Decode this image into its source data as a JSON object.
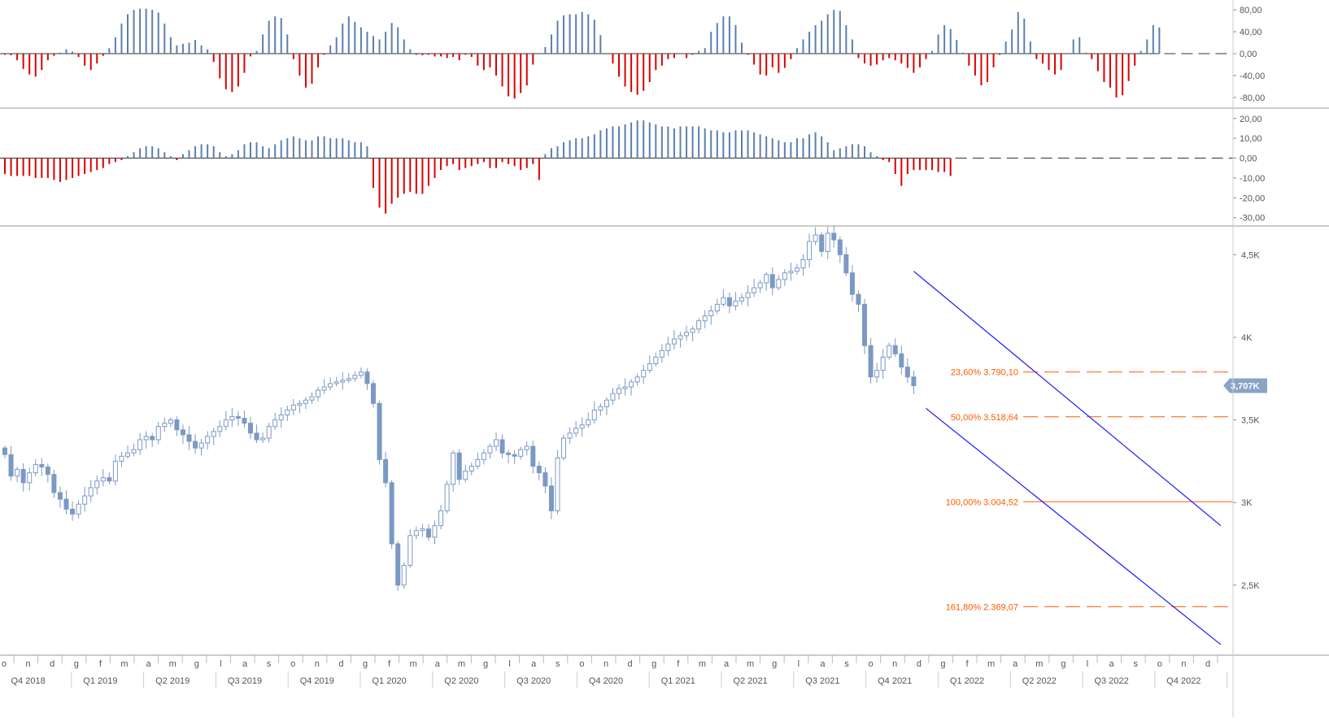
{
  "colors": {
    "up": "#5b7fb0",
    "down": "#dd0000",
    "candle": "#7b99c4",
    "channel": "#1a1aff",
    "fib": "#ff5a00",
    "axis_text": "#555555",
    "divider": "#999999",
    "price_label_bg": "#8aa3c6"
  },
  "last_price_label": "3,707K",
  "chart_data": [
    {
      "type": "bar",
      "panel": "oscillator-1",
      "ylim": [
        -95,
        95
      ],
      "ticks": [
        {
          "v": 80,
          "label": "80,00"
        },
        {
          "v": 40,
          "label": "40,00"
        },
        {
          "v": 0,
          "label": "0,00"
        },
        {
          "v": -40,
          "label": "-40,00"
        },
        {
          "v": -80,
          "label": "-80,00"
        }
      ],
      "values": [
        -2,
        -3,
        -12,
        -28,
        -38,
        -42,
        -30,
        -12,
        -4,
        2,
        8,
        4,
        -6,
        -22,
        -30,
        -18,
        -4,
        10,
        30,
        55,
        72,
        80,
        82,
        82,
        80,
        75,
        55,
        30,
        15,
        18,
        20,
        25,
        15,
        8,
        -15,
        -45,
        -65,
        -70,
        -60,
        -35,
        -5,
        5,
        35,
        60,
        68,
        65,
        35,
        -10,
        -40,
        -62,
        -55,
        -25,
        -2,
        15,
        30,
        55,
        68,
        58,
        48,
        40,
        32,
        26,
        40,
        56,
        48,
        26,
        8,
        -2,
        -3,
        -2,
        -5,
        -5,
        -8,
        -6,
        -12,
        -2,
        -6,
        -22,
        -30,
        -25,
        -40,
        -60,
        -78,
        -82,
        -72,
        -58,
        -20,
        0,
        12,
        35,
        60,
        70,
        72,
        72,
        76,
        72,
        62,
        34,
        0,
        -18,
        -42,
        -60,
        -70,
        -75,
        -68,
        -52,
        -30,
        -22,
        -10,
        -8,
        0,
        -8,
        -2,
        5,
        10,
        40,
        56,
        68,
        68,
        52,
        20,
        -2,
        -20,
        -38,
        -40,
        -25,
        -35,
        -26,
        -10,
        10,
        26,
        40,
        52,
        60,
        72,
        80,
        78,
        52,
        26,
        -8,
        -18,
        -22,
        -20,
        -12,
        -8,
        -12,
        -18,
        -26,
        -35,
        -25,
        -10,
        5,
        35,
        52,
        45,
        25,
        2,
        -22,
        -40,
        -58,
        -52,
        -25,
        -2,
        22,
        44,
        76,
        64,
        22,
        -10,
        -18,
        -30,
        -38,
        -30,
        0,
        26,
        30,
        2,
        -10,
        -32,
        -52,
        -62,
        -80,
        -76,
        -50,
        -22,
        5,
        26,
        52,
        48
      ],
      "zero_line_end": 112
    },
    {
      "type": "bar",
      "panel": "oscillator-2",
      "ylim": [
        -33,
        24
      ],
      "ticks": [
        {
          "v": 20,
          "label": "20,00"
        },
        {
          "v": 10,
          "label": "10,00"
        },
        {
          "v": 0,
          "label": "0,00"
        },
        {
          "v": -10,
          "label": "-10,00"
        },
        {
          "v": -20,
          "label": "-20,00"
        },
        {
          "v": -30,
          "label": "-30,00"
        }
      ],
      "values": [
        -8,
        -9,
        -9,
        -9,
        -9,
        -10,
        -10,
        -10,
        -11,
        -12,
        -11,
        -10,
        -9,
        -8,
        -7,
        -6,
        -5,
        -3,
        -2,
        -1,
        1,
        3,
        5,
        6,
        6,
        5,
        3,
        1,
        -1,
        2,
        4,
        6,
        7,
        7,
        6,
        3,
        1,
        2,
        4,
        7,
        8,
        8,
        6,
        5,
        7,
        9,
        10,
        11,
        10,
        9,
        9,
        11,
        11,
        10,
        10,
        10,
        9,
        8,
        8,
        6,
        -15,
        -25,
        -28,
        -23,
        -20,
        -18,
        -17,
        -18,
        -18,
        -14,
        -10,
        -6,
        -4,
        -3,
        -6,
        -5,
        -4,
        -3,
        -2,
        -5,
        -5,
        -2,
        -3,
        -4,
        -6,
        -5,
        -3,
        -11,
        2,
        5,
        6,
        8,
        9,
        10,
        10,
        11,
        12,
        14,
        15,
        16,
        16,
        17,
        18,
        19,
        19,
        18,
        17,
        16,
        16,
        15,
        16,
        16,
        16,
        16,
        15,
        14,
        14,
        13,
        13,
        14,
        14,
        14,
        13,
        12,
        11,
        10,
        9,
        8,
        8,
        10,
        10,
        12,
        13,
        11,
        8,
        4,
        5,
        6,
        7,
        7,
        6,
        3,
        1,
        -1,
        -2,
        -8,
        -14,
        -8,
        -6,
        -6,
        -6,
        -6,
        -7,
        -7,
        -9
      ],
      "zero_line_end": 112
    },
    {
      "type": "candlestick",
      "panel": "price",
      "ylim": [
        2130,
        4620
      ],
      "ticks": [
        {
          "v": 4500,
          "label": "4,5K"
        },
        {
          "v": 4000,
          "label": "4K"
        },
        {
          "v": 3500,
          "label": "3,5K"
        },
        {
          "v": 3000,
          "label": "3K"
        },
        {
          "v": 2500,
          "label": "2,5K"
        }
      ],
      "closes": [
        3290,
        3160,
        3200,
        3120,
        3180,
        3230,
        3215,
        3170,
        3060,
        3020,
        2960,
        2930,
        2990,
        3040,
        3090,
        3130,
        3150,
        3130,
        3250,
        3280,
        3300,
        3320,
        3380,
        3400,
        3380,
        3460,
        3480,
        3500,
        3440,
        3410,
        3370,
        3330,
        3360,
        3400,
        3430,
        3460,
        3500,
        3520,
        3510,
        3480,
        3420,
        3380,
        3390,
        3460,
        3500,
        3530,
        3560,
        3590,
        3600,
        3620,
        3640,
        3680,
        3700,
        3720,
        3730,
        3740,
        3750,
        3770,
        3790,
        3720,
        3600,
        3260,
        3120,
        2750,
        2500,
        2620,
        2800,
        2830,
        2840,
        2790,
        2860,
        2950,
        3110,
        3300,
        3140,
        3190,
        3220,
        3260,
        3300,
        3340,
        3380,
        3300,
        3290,
        3280,
        3320,
        3340,
        3220,
        3180,
        3100,
        2950,
        3270,
        3390,
        3420,
        3450,
        3470,
        3500,
        3560,
        3580,
        3620,
        3660,
        3690,
        3700,
        3730,
        3760,
        3800,
        3840,
        3880,
        3920,
        3960,
        3990,
        4010,
        4030,
        4050,
        4100,
        4130,
        4160,
        4200,
        4240,
        4190,
        4220,
        4240,
        4270,
        4300,
        4330,
        4380,
        4300,
        4350,
        4390,
        4400,
        4420,
        4470,
        4580,
        4620,
        4520,
        4630,
        4590,
        4500,
        4390,
        4260,
        4200,
        3950,
        3760,
        3800,
        3880,
        3950,
        3900,
        3820,
        3760,
        3707
      ],
      "x_ticks": [
        {
          "m": "o",
          "q": ""
        },
        {
          "m": "n",
          "q": "Q4 2018"
        },
        {
          "m": "d",
          "q": ""
        },
        {
          "m": "g",
          "q": ""
        },
        {
          "m": "f",
          "q": "Q1 2019"
        },
        {
          "m": "m",
          "q": ""
        },
        {
          "m": "a",
          "q": ""
        },
        {
          "m": "m",
          "q": "Q2 2019"
        },
        {
          "m": "g",
          "q": ""
        },
        {
          "m": "l",
          "q": ""
        },
        {
          "m": "a",
          "q": "Q3 2019"
        },
        {
          "m": "s",
          "q": ""
        },
        {
          "m": "o",
          "q": ""
        },
        {
          "m": "n",
          "q": "Q4 2019"
        },
        {
          "m": "d",
          "q": ""
        },
        {
          "m": "g",
          "q": ""
        },
        {
          "m": "f",
          "q": "Q1 2020"
        },
        {
          "m": "m",
          "q": ""
        },
        {
          "m": "a",
          "q": ""
        },
        {
          "m": "m",
          "q": "Q2 2020"
        },
        {
          "m": "g",
          "q": ""
        },
        {
          "m": "l",
          "q": ""
        },
        {
          "m": "a",
          "q": "Q3 2020"
        },
        {
          "m": "s",
          "q": ""
        },
        {
          "m": "o",
          "q": ""
        },
        {
          "m": "n",
          "q": "Q4 2020"
        },
        {
          "m": "d",
          "q": ""
        },
        {
          "m": "g",
          "q": ""
        },
        {
          "m": "f",
          "q": "Q1 2021"
        },
        {
          "m": "m",
          "q": ""
        },
        {
          "m": "a",
          "q": ""
        },
        {
          "m": "m",
          "q": "Q2 2021"
        },
        {
          "m": "g",
          "q": ""
        },
        {
          "m": "l",
          "q": ""
        },
        {
          "m": "a",
          "q": "Q3 2021"
        },
        {
          "m": "s",
          "q": ""
        },
        {
          "m": "o",
          "q": ""
        },
        {
          "m": "n",
          "q": "Q4 2021"
        },
        {
          "m": "d",
          "q": ""
        },
        {
          "m": "g",
          "q": ""
        },
        {
          "m": "f",
          "q": "Q1 2022"
        },
        {
          "m": "m",
          "q": ""
        },
        {
          "m": "a",
          "q": ""
        },
        {
          "m": "m",
          "q": "Q2 2022"
        },
        {
          "m": "g",
          "q": ""
        },
        {
          "m": "l",
          "q": ""
        },
        {
          "m": "a",
          "q": "Q3 2022"
        },
        {
          "m": "s",
          "q": ""
        },
        {
          "m": "o",
          "q": ""
        },
        {
          "m": "n",
          "q": "Q4 2022"
        },
        {
          "m": "d",
          "q": ""
        }
      ],
      "fib_levels": [
        {
          "label": "23,60% 3.790,10",
          "value": 3790.1,
          "style": "dashed"
        },
        {
          "label": "50,00% 3.518,64",
          "value": 3518.64,
          "style": "dashed"
        },
        {
          "label": "100,00% 3.004,52",
          "value": 3004.52,
          "style": "solid"
        },
        {
          "label": "161,80% 2.369,07",
          "value": 2369.07,
          "style": "dashed"
        }
      ],
      "channel_lines": [
        {
          "name": "upper",
          "from": {
            "bar": 148,
            "value": 4400
          },
          "to": {
            "bar": 198,
            "value": 2860
          }
        },
        {
          "name": "lower",
          "from": {
            "bar": 150,
            "value": 3570
          },
          "to": {
            "bar": 198,
            "value": 2140
          }
        }
      ],
      "last_value": 3707
    }
  ]
}
